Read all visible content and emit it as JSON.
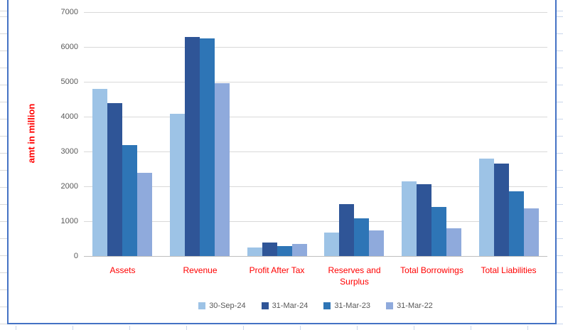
{
  "chart_data": {
    "type": "bar",
    "title": "",
    "ylabel": "amt in million",
    "xlabel": "",
    "categories": [
      "Assets",
      "Revenue",
      "Profit After Tax",
      "Reserves and Surplus",
      "Total Borrowings",
      "Total Liabilities"
    ],
    "series": [
      {
        "name": "30-Sep-24",
        "color": "#9DC3E6",
        "values": [
          4800,
          4080,
          250,
          680,
          2150,
          2800
        ]
      },
      {
        "name": "31-Mar-24",
        "color": "#2F5597",
        "values": [
          4390,
          6290,
          395,
          1480,
          2060,
          2650
        ]
      },
      {
        "name": "31-Mar-23",
        "color": "#2E75B6",
        "values": [
          3190,
          6250,
          290,
          1080,
          1400,
          1855
        ]
      },
      {
        "name": "31-Mar-22",
        "color": "#8FAADC",
        "values": [
          2390,
          4965,
          345,
          740,
          800,
          1370
        ]
      }
    ],
    "ylim": [
      0,
      7000
    ],
    "ytick_step": 1000,
    "ytick_labels": [
      "0",
      "1000",
      "2000",
      "3000",
      "4000",
      "5000",
      "6000",
      "7000"
    ],
    "grid": true,
    "legend_position": "bottom",
    "colors": {
      "ylabel_color": "#FF0000",
      "category_label_color": "#FF0000",
      "tick_label_color": "#595959",
      "gridline_color": "#D9D9D9",
      "axis_line_color": "#BFBFBF",
      "chart_border_color": "#4472C4"
    }
  }
}
